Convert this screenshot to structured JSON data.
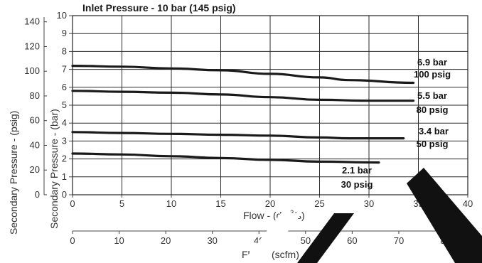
{
  "chart_data": {
    "type": "line",
    "title": "Inlet Pressure - 10 bar (145 psig)",
    "x_primary": {
      "label_main": "Flow - (dm",
      "label_sup": "3",
      "label_tail": "/s)",
      "label_sub": "n",
      "ticks": [
        "0",
        "5",
        "10",
        "15",
        "20",
        "25",
        "30",
        "35",
        "40"
      ],
      "range": [
        0,
        40
      ]
    },
    "x_secondary": {
      "label": "Flow - (scfm)",
      "ticks": [
        "0",
        "10",
        "20",
        "30",
        "40",
        "50",
        "60",
        "70",
        "80"
      ],
      "range": [
        0,
        84.8
      ]
    },
    "y_primary": {
      "label": "Secondary Pressure - (bar)",
      "ticks": [
        "0",
        "1",
        "2",
        "3",
        "4",
        "5",
        "6",
        "7",
        "8",
        "9",
        "10"
      ],
      "range": [
        0,
        10
      ]
    },
    "y_secondary": {
      "label": "Secondary Pressure - (psig)",
      "ticks": [
        "0",
        "20",
        "40",
        "60",
        "80",
        "100",
        "120",
        "140"
      ],
      "range": [
        0,
        145
      ]
    },
    "grid": true,
    "series": [
      {
        "name_bar": "6.9 bar",
        "name_psig": "100 psig",
        "x": [
          0,
          5,
          10,
          15,
          20,
          25,
          28,
          34.5
        ],
        "y": [
          7.2,
          7.15,
          7.05,
          6.95,
          6.75,
          6.55,
          6.4,
          6.25
        ]
      },
      {
        "name_bar": "5.5 bar",
        "name_psig": "80 psig",
        "x": [
          0,
          5,
          10,
          15,
          20,
          25,
          30,
          34.5
        ],
        "y": [
          5.8,
          5.75,
          5.7,
          5.6,
          5.45,
          5.3,
          5.25,
          5.25
        ]
      },
      {
        "name_bar": "3.4 bar",
        "name_psig": "50 psig",
        "x": [
          0,
          5,
          10,
          15,
          20,
          25,
          28,
          33.5
        ],
        "y": [
          3.5,
          3.45,
          3.4,
          3.35,
          3.3,
          3.2,
          3.15,
          3.15
        ]
      },
      {
        "name_bar": "2.1 bar",
        "name_psig": "30 psig",
        "x": [
          0,
          5,
          10,
          15,
          20,
          25,
          31
        ],
        "y": [
          2.3,
          2.25,
          2.15,
          2.05,
          1.95,
          1.85,
          1.8
        ]
      }
    ]
  }
}
